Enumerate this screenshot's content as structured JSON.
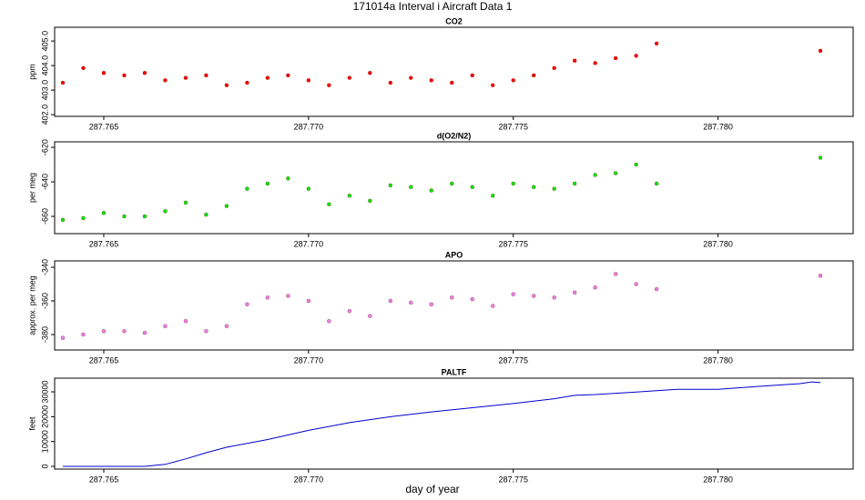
{
  "title": "171014a   Interval i Aircraft Data 1",
  "xlabel": "day of year",
  "chart_data": [
    {
      "type": "scatter",
      "title": "CO2",
      "ylabel": "ppm",
      "color": "#ff0000",
      "x": [
        287.764,
        287.7645,
        287.765,
        287.7655,
        287.766,
        287.7665,
        287.767,
        287.7675,
        287.768,
        287.7685,
        287.769,
        287.7695,
        287.77,
        287.7705,
        287.771,
        287.7715,
        287.772,
        287.7725,
        287.773,
        287.7735,
        287.774,
        287.7745,
        287.775,
        287.7755,
        287.776,
        287.7765,
        287.777,
        287.7775,
        287.778,
        287.7785,
        287.7825
      ],
      "values": [
        403.3,
        403.9,
        403.7,
        403.6,
        403.7,
        403.4,
        403.5,
        403.6,
        403.2,
        403.3,
        403.5,
        403.6,
        403.4,
        403.2,
        403.5,
        403.7,
        403.3,
        403.5,
        403.4,
        403.3,
        403.6,
        403.2,
        403.4,
        403.6,
        403.9,
        404.2,
        404.1,
        404.3,
        404.4,
        404.9,
        404.6
      ],
      "xlim": [
        287.7638,
        287.7833
      ],
      "xticks": [
        287.765,
        {
          "value": 287.77,
          "label": "287.770"
        },
        287.775,
        {
          "value": 287.78,
          "label": "287.780"
        }
      ],
      "ylim": [
        401.93,
        405.56
      ],
      "yticks": [
        {
          "value": 402,
          "label": "402.0"
        },
        {
          "value": 403,
          "label": "403.0"
        },
        {
          "value": 404,
          "label": "404.0"
        },
        {
          "value": 405,
          "label": "405.0"
        }
      ]
    },
    {
      "type": "scatter",
      "title": "d(O2/N2)",
      "ylabel": "per meg",
      "color": "#00ee00",
      "x": [
        287.764,
        287.7645,
        287.765,
        287.7655,
        287.766,
        287.7665,
        287.767,
        287.7675,
        287.768,
        287.7685,
        287.769,
        287.7695,
        287.77,
        287.7705,
        287.771,
        287.7715,
        287.772,
        287.7725,
        287.773,
        287.7735,
        287.774,
        287.7745,
        287.775,
        287.7755,
        287.776,
        287.7765,
        287.777,
        287.7775,
        287.778,
        287.7785,
        287.7825
      ],
      "values": [
        -662,
        -661,
        -658,
        -660,
        -660,
        -657,
        -652,
        -659,
        -654,
        -644,
        -641,
        -638,
        -644,
        -653,
        -648,
        -651,
        -642,
        -643,
        -645,
        -641,
        -643,
        -648,
        -641,
        -643,
        -644,
        -641,
        -636,
        -635,
        -630,
        -641,
        -626
      ],
      "xlim": [
        287.7638,
        287.7833
      ],
      "xticks": [
        287.765,
        {
          "value": 287.77,
          "label": "287.770"
        },
        287.775,
        {
          "value": 287.78,
          "label": "287.780"
        }
      ],
      "ylim": [
        -670,
        -616.8
      ],
      "yticks": [
        -620,
        -640,
        -660
      ]
    },
    {
      "type": "scatter",
      "title": "APO",
      "ylabel": "approx. per meg",
      "color": "#ee82ee",
      "x": [
        287.764,
        287.7645,
        287.765,
        287.7655,
        287.766,
        287.7665,
        287.767,
        287.7675,
        287.768,
        287.7685,
        287.769,
        287.7695,
        287.77,
        287.7705,
        287.771,
        287.7715,
        287.772,
        287.7725,
        287.773,
        287.7735,
        287.774,
        287.7745,
        287.775,
        287.7755,
        287.776,
        287.7765,
        287.777,
        287.7775,
        287.778,
        287.7785,
        287.7825
      ],
      "values": [
        -382,
        -380,
        -378,
        -378,
        -379,
        -375,
        -372,
        -378,
        -375,
        -362,
        -358,
        -357,
        -360,
        -372,
        -366,
        -369,
        -360,
        -361,
        -362,
        -358,
        -359,
        -363,
        -356,
        -357,
        -358,
        -355,
        -352,
        -344,
        -350,
        -353,
        -345
      ],
      "xlim": [
        287.7638,
        287.7833
      ],
      "xticks": [
        287.765,
        {
          "value": 287.77,
          "label": "287.770"
        },
        287.775,
        {
          "value": 287.78,
          "label": "287.780"
        }
      ],
      "ylim": [
        -389.2,
        -336.2
      ],
      "yticks": [
        -340,
        -360,
        -380
      ]
    },
    {
      "type": "line",
      "title": "PALTF",
      "ylabel": "feet",
      "color": "#0000cc",
      "x": [
        287.764,
        287.766,
        287.7665,
        287.767,
        287.7675,
        287.768,
        287.769,
        287.77,
        287.771,
        287.772,
        287.773,
        287.774,
        287.775,
        287.776,
        287.7765,
        287.777,
        287.778,
        287.779,
        287.78,
        287.781,
        287.782,
        287.7823,
        287.7825
      ],
      "values": [
        0,
        0,
        800,
        3000,
        5500,
        7700,
        10800,
        14500,
        17600,
        20000,
        21900,
        23600,
        25300,
        27200,
        28600,
        28900,
        29900,
        31000,
        31000,
        32200,
        33300,
        34000,
        33700
      ],
      "xlim": [
        287.7638,
        287.7833
      ],
      "xticks": [
        287.765,
        {
          "value": 287.77,
          "label": "287.770"
        },
        287.775,
        {
          "value": 287.78,
          "label": "287.780"
        }
      ],
      "ylim": [
        -1100,
        35500
      ],
      "yticks": [
        0,
        10000,
        20000,
        30000
      ]
    }
  ]
}
